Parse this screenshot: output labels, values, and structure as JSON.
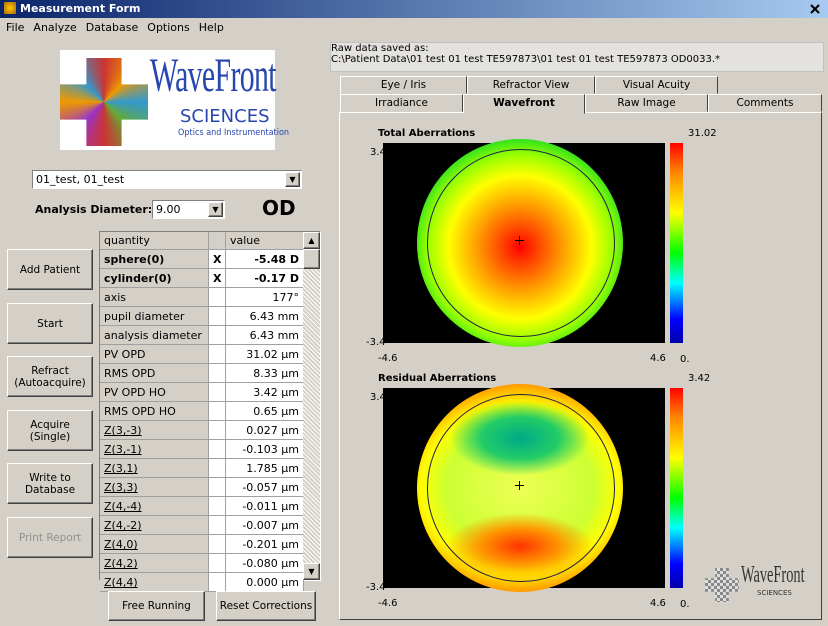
{
  "window": {
    "title": "Measurement Form"
  },
  "menu": [
    "File",
    "Analyze",
    "Database",
    "Options",
    "Help"
  ],
  "logo": {
    "brand": "WaveFront",
    "line2": "SCIENCES",
    "line3": "Optics and Instrumentation"
  },
  "patient_select": "01_test, 01_test",
  "analysis_diameter": {
    "label": "Analysis Diameter:",
    "value": "9.00"
  },
  "eye": "OD",
  "buttons": [
    "Add Patient",
    "Start",
    "Refract (Autoacquire)",
    "Acquire (Single)",
    "Write to Database",
    "Print Report"
  ],
  "table": {
    "header": [
      "quantity",
      "value"
    ],
    "rows": [
      {
        "quantity": "sphere(0)",
        "flag": "X",
        "value": "-5.48 D"
      },
      {
        "quantity": "cylinder(0)",
        "flag": "X",
        "value": "-0.17 D"
      },
      {
        "quantity": "axis",
        "value": "177°"
      },
      {
        "quantity": "pupil diameter",
        "value": "6.43 mm"
      },
      {
        "quantity": "analysis diameter",
        "value": "6.43 mm"
      },
      {
        "quantity": "PV OPD",
        "value": "31.02 µm"
      },
      {
        "quantity": "RMS OPD",
        "value": "8.33 µm"
      },
      {
        "quantity": "PV OPD HO",
        "value": "3.42 µm"
      },
      {
        "quantity": "RMS OPD HO",
        "value": "0.65 µm"
      },
      {
        "quantity": "Z(3,-3)",
        "value": "0.027 µm"
      },
      {
        "quantity": "Z(3,-1)",
        "value": "-0.103 µm"
      },
      {
        "quantity": "Z(3,1)",
        "value": "1.785 µm"
      },
      {
        "quantity": "Z(3,3)",
        "value": "-0.057 µm"
      },
      {
        "quantity": "Z(4,-4)",
        "value": "-0.011 µm"
      },
      {
        "quantity": "Z(4,-2)",
        "value": "-0.007 µm"
      },
      {
        "quantity": "Z(4,0)",
        "value": "-0.201 µm"
      },
      {
        "quantity": "Z(4,2)",
        "value": "-0.080 µm"
      },
      {
        "quantity": "Z(4,4)",
        "value": "0.000 µm"
      }
    ]
  },
  "bottom_buttons": [
    "Free Running",
    "Reset Corrections"
  ],
  "raw_data": {
    "label": "Raw data saved as:",
    "path": "C:\\Patient Data\\01 test 01 test TE597873\\01 test 01 test TE597873 OD0033.*"
  },
  "tabs_back": [
    "Eye / Iris",
    "Refractor View",
    "Visual Acuity"
  ],
  "tabs_front": [
    "Irradiance",
    "Wavefront",
    "Raw Image",
    "Comments"
  ],
  "plots": [
    {
      "title": "Total Aberrations",
      "zmax": "31.02",
      "zmin": "0.",
      "ymax": "3.4",
      "ymin": "-3.4",
      "xmin": "-4.6",
      "xmax": "4.6"
    },
    {
      "title": "Residual Aberrations",
      "zmax": "3.42",
      "zmin": "0.",
      "ymax": "3.4",
      "ymin": "-3.4",
      "xmin": "-4.6",
      "xmax": "4.6"
    }
  ]
}
